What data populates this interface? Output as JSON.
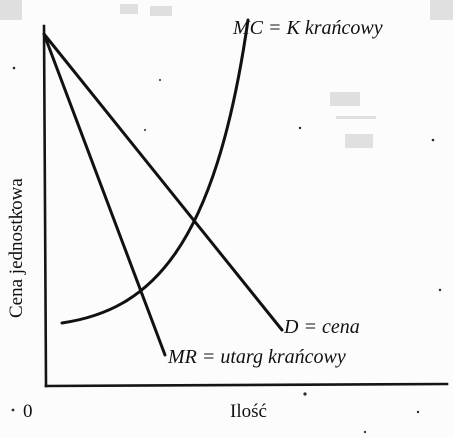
{
  "diagram": {
    "y_axis_label": "Cena  jednostkowa",
    "x_axis_label": "Ilość",
    "origin_label": "0",
    "curves": [
      {
        "id": "mc",
        "label": "MC = K krańcowy"
      },
      {
        "id": "demand",
        "label": "D = cena"
      },
      {
        "id": "mr",
        "label": "MR = utarg krańcowy"
      }
    ]
  }
}
